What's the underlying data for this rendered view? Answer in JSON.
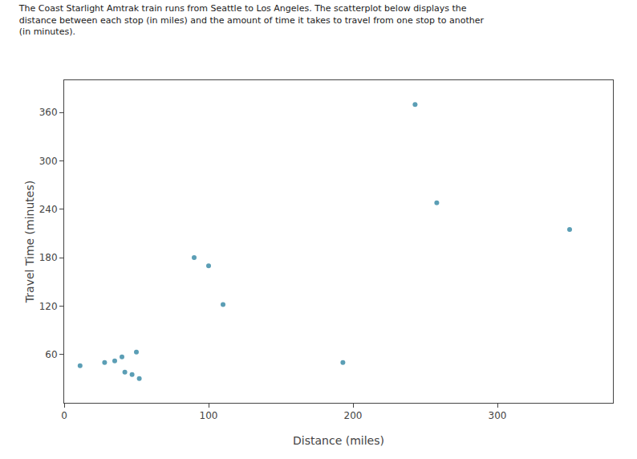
{
  "chart_data": {
    "type": "scatter",
    "title": "The Coast Starlight Amtrak train runs from Seattle to Los Angeles. The scatterplot below displays the\ndistance between each stop (in miles) and the amount of time it takes to travel from one stop to another\n(in minutes).",
    "x_label": "Distance (miles)",
    "y_label": "Travel Time (minutes)",
    "x": [
      11,
      28,
      35,
      40,
      42,
      47,
      50,
      52,
      90,
      100,
      110,
      193,
      243,
      258,
      350
    ],
    "values": [
      46,
      50,
      52,
      57,
      38,
      35,
      63,
      30,
      180,
      170,
      122,
      50,
      370,
      248,
      215
    ],
    "color": "#5b9eb5",
    "xlim": [
      0,
      380
    ],
    "ylim": [
      0,
      400
    ],
    "xticks": [
      0,
      100,
      200,
      300
    ],
    "yticks": [
      60,
      120,
      180,
      240,
      300,
      360
    ],
    "grid": false
  }
}
